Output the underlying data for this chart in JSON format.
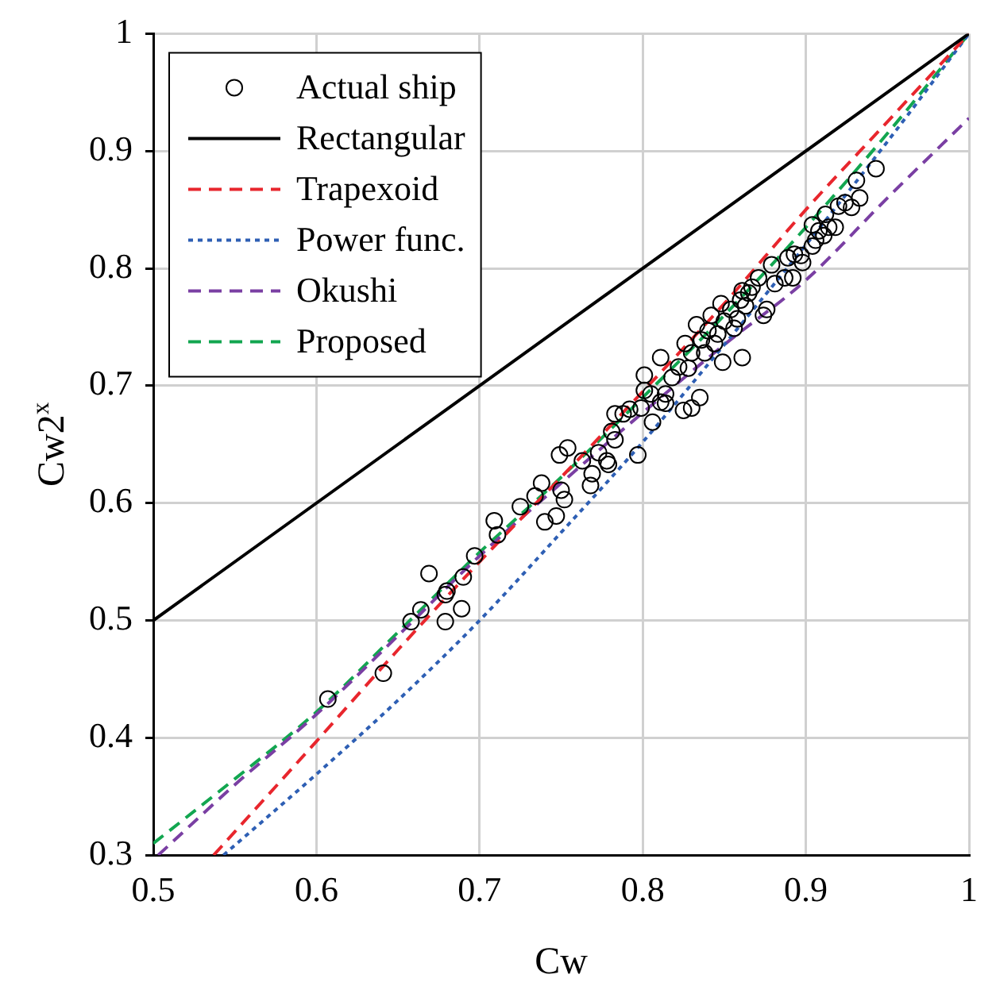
{
  "chart_data": {
    "type": "scatter",
    "xlabel": "Cw",
    "ylabel": "Cw2$^{x}$",
    "xlim": [
      0.5,
      1
    ],
    "ylim": [
      0.3,
      1
    ],
    "xticks": [
      0.5,
      0.6,
      0.7,
      0.8,
      0.9,
      1
    ],
    "yticks": [
      0.3,
      0.4,
      0.5,
      0.6,
      0.7,
      0.8,
      0.9,
      1
    ],
    "grid": true,
    "legend": "top left",
    "series": [
      {
        "name": "Actual ship",
        "marker": "circle",
        "color": "#000000",
        "x": [
          0.607,
          0.641,
          0.658,
          0.664,
          0.669,
          0.679,
          0.679,
          0.68,
          0.689,
          0.69,
          0.697,
          0.709,
          0.711,
          0.725,
          0.734,
          0.738,
          0.74,
          0.747,
          0.749,
          0.754,
          0.752,
          0.75,
          0.763,
          0.768,
          0.769,
          0.773,
          0.778,
          0.779,
          0.781,
          0.783,
          0.783,
          0.788,
          0.792,
          0.797,
          0.799,
          0.801,
          0.801,
          0.805,
          0.806,
          0.811,
          0.811,
          0.814,
          0.814,
          0.818,
          0.822,
          0.825,
          0.83,
          0.835,
          0.826,
          0.828,
          0.83,
          0.833,
          0.836,
          0.838,
          0.84,
          0.842,
          0.844,
          0.846,
          0.848,
          0.849,
          0.85,
          0.854,
          0.856,
          0.858,
          0.86,
          0.861,
          0.861,
          0.863,
          0.865,
          0.867,
          0.871,
          0.874,
          0.876,
          0.879,
          0.881,
          0.887,
          0.889,
          0.892,
          0.893,
          0.897,
          0.898,
          0.904,
          0.904,
          0.906,
          0.908,
          0.911,
          0.912,
          0.914,
          0.918,
          0.92,
          0.924,
          0.928,
          0.931,
          0.933,
          0.943
        ],
        "values": [
          0.433,
          0.455,
          0.499,
          0.509,
          0.54,
          0.499,
          0.522,
          0.525,
          0.51,
          0.537,
          0.555,
          0.585,
          0.573,
          0.597,
          0.606,
          0.617,
          0.584,
          0.589,
          0.641,
          0.647,
          0.603,
          0.611,
          0.636,
          0.615,
          0.625,
          0.643,
          0.636,
          0.633,
          0.661,
          0.676,
          0.654,
          0.676,
          0.68,
          0.641,
          0.681,
          0.696,
          0.709,
          0.693,
          0.669,
          0.724,
          0.686,
          0.693,
          0.685,
          0.707,
          0.716,
          0.679,
          0.681,
          0.69,
          0.736,
          0.715,
          0.728,
          0.752,
          0.739,
          0.728,
          0.747,
          0.76,
          0.736,
          0.744,
          0.77,
          0.72,
          0.755,
          0.765,
          0.749,
          0.757,
          0.773,
          0.724,
          0.781,
          0.768,
          0.779,
          0.784,
          0.792,
          0.76,
          0.765,
          0.803,
          0.787,
          0.792,
          0.809,
          0.792,
          0.812,
          0.811,
          0.805,
          0.837,
          0.819,
          0.824,
          0.832,
          0.828,
          0.846,
          0.835,
          0.835,
          0.853,
          0.856,
          0.852,
          0.875,
          0.86,
          0.885
        ]
      },
      {
        "name": "Rectangular",
        "type": "line",
        "marker": "none",
        "line_style": "solid",
        "color": "#000000",
        "x": [
          0.5,
          1
        ],
        "values": [
          0.5,
          1
        ]
      },
      {
        "name": "Trapexoid",
        "type": "line",
        "marker": "none",
        "line_style": "dashed",
        "color": "#e8262d",
        "x": [
          0.537,
          0.55,
          0.6,
          0.65,
          0.7,
          0.75,
          0.8,
          0.85,
          0.9,
          0.95,
          1
        ],
        "values": [
          0.3,
          0.32,
          0.397,
          0.475,
          0.55,
          0.622,
          0.695,
          0.77,
          0.85,
          0.925,
          1
        ]
      },
      {
        "name": "Power func.",
        "type": "line",
        "marker": "none",
        "line_style": "dotted",
        "color": "#2e5fb4",
        "x": [
          0.543,
          0.6,
          0.65,
          0.7,
          0.75,
          0.8,
          0.85,
          0.9,
          0.95,
          1
        ],
        "values": [
          0.3,
          0.369,
          0.432,
          0.5,
          0.575,
          0.652,
          0.735,
          0.82,
          0.908,
          1
        ]
      },
      {
        "name": "Okushi",
        "type": "line",
        "marker": "none",
        "line_style": "dashed",
        "color": "#7a3fa3",
        "x": [
          0.503,
          0.55,
          0.6,
          0.65,
          0.7,
          0.75,
          0.8,
          0.85,
          0.9,
          0.95,
          1
        ],
        "values": [
          0.3,
          0.36,
          0.42,
          0.487,
          0.555,
          0.617,
          0.677,
          0.735,
          0.79,
          0.86,
          0.928
        ]
      },
      {
        "name": "Proposed",
        "type": "line",
        "marker": "none",
        "line_style": "dashed",
        "color": "#12a650",
        "x": [
          0.5,
          0.55,
          0.6,
          0.65,
          0.7,
          0.75,
          0.8,
          0.85,
          0.9,
          0.95,
          1
        ],
        "values": [
          0.31,
          0.365,
          0.422,
          0.49,
          0.558,
          0.622,
          0.69,
          0.76,
          0.835,
          0.915,
          1
        ]
      }
    ]
  }
}
